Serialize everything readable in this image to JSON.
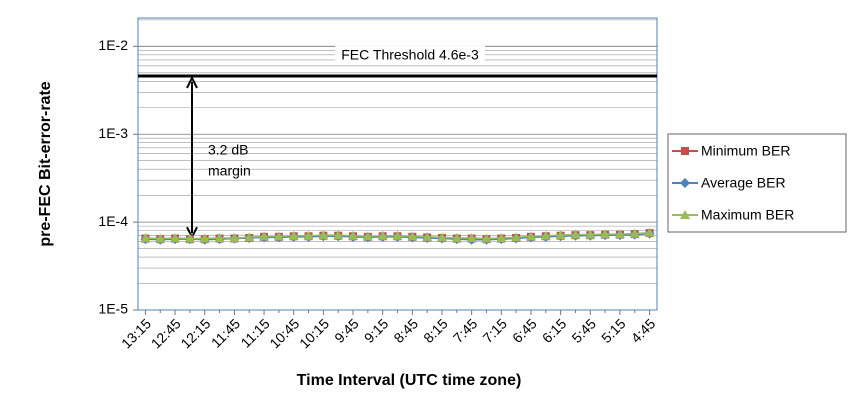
{
  "chart_data": {
    "type": "line",
    "log_y": true,
    "grid": true,
    "legend": "right",
    "xlabel": "Time Interval (UTC time zone)",
    "ylabel": "pre-FEC Bit-error-rate",
    "categories": [
      "13:15",
      null,
      "12:45",
      null,
      "12:15",
      null,
      "11:45",
      null,
      "11:15",
      null,
      "10:45",
      null,
      "10:15",
      null,
      "9:45",
      null,
      "9:15",
      null,
      "8:45",
      null,
      "8:15",
      null,
      "7:45",
      null,
      "7:15",
      null,
      "6:45",
      null,
      "6:15",
      null,
      "5:45",
      null,
      "5:15",
      null,
      "4:45"
    ],
    "ylim": [
      1e-05,
      0.021
    ],
    "yticks": [
      {
        "value": 1e-05,
        "label": "1E-5"
      },
      {
        "value": 0.0001,
        "label": "1E-4"
      },
      {
        "value": 0.001,
        "label": "1E-3"
      },
      {
        "value": 0.01,
        "label": "1E-2"
      }
    ],
    "threshold": {
      "value": 0.0046,
      "label": "FEC Threshold 4.6e-3",
      "color": "#000000"
    },
    "annotation": [
      "3.2 dB",
      "margin"
    ],
    "series": [
      {
        "name": "Minimum BER",
        "color": "#c0504d",
        "marker": "square",
        "values": [
          6.5e-05,
          6.4e-05,
          6.5e-05,
          6.4e-05,
          6.4e-05,
          6.5e-05,
          6.5e-05,
          6.6e-05,
          6.8e-05,
          6.8e-05,
          6.9e-05,
          6.9e-05,
          7e-05,
          7e-05,
          6.9e-05,
          6.8e-05,
          6.9e-05,
          6.9e-05,
          6.8e-05,
          6.7e-05,
          6.6e-05,
          6.5e-05,
          6.5e-05,
          6.4e-05,
          6.5e-05,
          6.6e-05,
          6.8e-05,
          6.9e-05,
          7e-05,
          7.1e-05,
          7.1e-05,
          7.2e-05,
          7.2e-05,
          7.3e-05,
          7.5e-05
        ]
      },
      {
        "name": "Average BER",
        "color": "#4f81bd",
        "marker": "diamond",
        "values": [
          6.4e-05,
          6.3e-05,
          6.4e-05,
          6.4e-05,
          6.3e-05,
          6.4e-05,
          6.5e-05,
          6.6e-05,
          6.7e-05,
          6.7e-05,
          6.8e-05,
          6.8e-05,
          6.9e-05,
          6.9e-05,
          6.8e-05,
          6.7e-05,
          6.8e-05,
          6.8e-05,
          6.7e-05,
          6.6e-05,
          6.5e-05,
          6.4e-05,
          6.3e-05,
          6.3e-05,
          6.4e-05,
          6.5e-05,
          6.7e-05,
          6.8e-05,
          6.9e-05,
          7e-05,
          7e-05,
          7.1e-05,
          7.1e-05,
          7.2e-05,
          7.4e-05
        ]
      },
      {
        "name": "Maximum BER",
        "color": "#9bbb59",
        "marker": "triangle",
        "values": [
          6.6e-05,
          6.5e-05,
          6.6e-05,
          6.5e-05,
          6.5e-05,
          6.6e-05,
          6.6e-05,
          6.7e-05,
          6.9e-05,
          6.9e-05,
          7e-05,
          7e-05,
          7.1e-05,
          7.1e-05,
          7e-05,
          6.9e-05,
          7e-05,
          7e-05,
          6.9e-05,
          6.8e-05,
          6.7e-05,
          6.6e-05,
          6.6e-05,
          6.5e-05,
          6.6e-05,
          6.7e-05,
          6.9e-05,
          7e-05,
          7.1e-05,
          7.2e-05,
          7.2e-05,
          7.3e-05,
          7.3e-05,
          7.4e-05,
          7.6e-05
        ]
      }
    ]
  }
}
